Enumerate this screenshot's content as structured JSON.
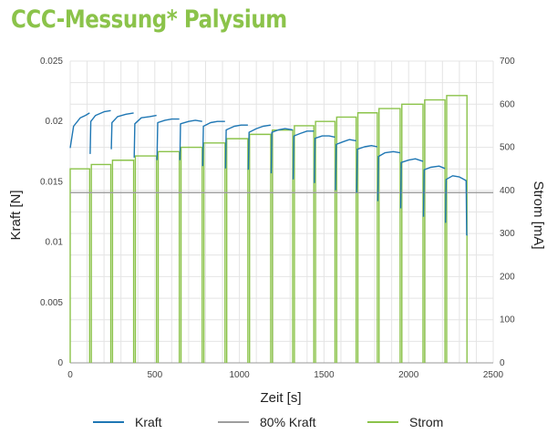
{
  "title": "CCC-Messung* Palysium",
  "colors": {
    "title": "#8bc34a",
    "kraft": "#1f77b4",
    "kraft80": "#9e9e9e",
    "strom": "#8bc34a",
    "grid": "#e4e4e4"
  },
  "chart_data": {
    "type": "line",
    "xlabel": "Zeit [s]",
    "ylabel_left": "Kraft [N]",
    "ylabel_right": "Strom [mA]",
    "xlim": [
      0,
      2500
    ],
    "ylim_left": [
      0,
      0.025
    ],
    "ylim_right": [
      0,
      700
    ],
    "x_ticks": [
      "0",
      "500",
      "1000",
      "1500",
      "2000",
      "2500"
    ],
    "y_left_ticks": [
      "0",
      "0.005",
      "0.01",
      "0.015",
      "0.02",
      "0.025"
    ],
    "y_right_ticks": [
      "0",
      "100",
      "200",
      "300",
      "400",
      "500",
      "600",
      "700"
    ],
    "grid": true,
    "legend_position": "bottom",
    "series": [
      {
        "name": "Kraft",
        "axis": "left",
        "segments": [
          {
            "x": [
              0,
              20,
              60,
              90,
              115
            ],
            "y": [
              0.0178,
              0.0196,
              0.0203,
              0.0205,
              0.0207
            ]
          },
          {
            "x": [
              118,
              122,
              150,
              200,
              240
            ],
            "y": [
              0.0173,
              0.02,
              0.0205,
              0.0208,
              0.0209
            ]
          },
          {
            "x": [
              243,
              247,
              280,
              330,
              375
            ],
            "y": [
              0.0177,
              0.0199,
              0.0204,
              0.0206,
              0.0207
            ]
          },
          {
            "x": [
              378,
              382,
              420,
              470,
              510
            ],
            "y": [
              0.017,
              0.0198,
              0.0203,
              0.0204,
              0.0205
            ]
          },
          {
            "x": [
              513,
              517,
              560,
              600,
              645
            ],
            "y": [
              0.0168,
              0.0199,
              0.0201,
              0.0202,
              0.0202
            ]
          },
          {
            "x": [
              648,
              652,
              700,
              740,
              780
            ],
            "y": [
              0.0168,
              0.0198,
              0.02,
              0.0201,
              0.02
            ]
          },
          {
            "x": [
              783,
              787,
              830,
              870,
              915
            ],
            "y": [
              0.0163,
              0.0196,
              0.0199,
              0.02,
              0.02
            ]
          },
          {
            "x": [
              918,
              922,
              970,
              1010,
              1050
            ],
            "y": [
              0.0161,
              0.0193,
              0.0196,
              0.0197,
              0.0197
            ]
          },
          {
            "x": [
              1053,
              1057,
              1100,
              1140,
              1185
            ],
            "y": [
              0.016,
              0.0191,
              0.0194,
              0.0196,
              0.0197
            ]
          },
          {
            "x": [
              1188,
              1192,
              1230,
              1270,
              1315
            ],
            "y": [
              0.0157,
              0.0191,
              0.0193,
              0.0194,
              0.0193
            ]
          },
          {
            "x": [
              1318,
              1322,
              1360,
              1400,
              1440
            ],
            "y": [
              0.0152,
              0.0188,
              0.019,
              0.0192,
              0.0192
            ]
          },
          {
            "x": [
              1443,
              1447,
              1490,
              1530,
              1565
            ],
            "y": [
              0.0149,
              0.0186,
              0.0188,
              0.0188,
              0.0187
            ]
          },
          {
            "x": [
              1568,
              1572,
              1610,
              1650,
              1690
            ],
            "y": [
              0.0143,
              0.0181,
              0.0183,
              0.0185,
              0.0184
            ]
          },
          {
            "x": [
              1693,
              1697,
              1740,
              1780,
              1815
            ],
            "y": [
              0.0141,
              0.0177,
              0.0179,
              0.018,
              0.0179
            ]
          },
          {
            "x": [
              1818,
              1822,
              1860,
              1910,
              1950
            ],
            "y": [
              0.0134,
              0.0171,
              0.0174,
              0.0175,
              0.0174
            ]
          },
          {
            "x": [
              1953,
              1957,
              2000,
              2040,
              2085
            ],
            "y": [
              0.0128,
              0.0166,
              0.0168,
              0.0169,
              0.0167
            ]
          },
          {
            "x": [
              2088,
              2092,
              2130,
              2180,
              2215
            ],
            "y": [
              0.0121,
              0.016,
              0.0162,
              0.0163,
              0.0161
            ]
          },
          {
            "x": [
              2218,
              2222,
              2260,
              2300,
              2340,
              2343,
              2348
            ],
            "y": [
              0.0116,
              0.0152,
              0.0155,
              0.0154,
              0.0151,
              0.0106,
              0.0106
            ]
          }
        ]
      },
      {
        "name": "80% Kraft",
        "axis": "left",
        "x": [
          0,
          2500
        ],
        "y": [
          0.0141,
          0.0141
        ]
      },
      {
        "name": "Strom",
        "axis": "right",
        "x_start": [
          0,
          125,
          250,
          385,
          520,
          655,
          790,
          925,
          1060,
          1195,
          1325,
          1450,
          1575,
          1700,
          1825,
          1960,
          2095,
          2225
        ],
        "x_end": [
          115,
          240,
          375,
          510,
          645,
          780,
          915,
          1050,
          1185,
          1315,
          1440,
          1565,
          1690,
          1815,
          1950,
          2085,
          2215,
          2345
        ],
        "values": [
          450,
          460,
          470,
          480,
          490,
          500,
          510,
          520,
          530,
          540,
          550,
          560,
          570,
          580,
          590,
          600,
          610,
          620
        ]
      }
    ]
  },
  "legend": [
    {
      "label": "Kraft",
      "color": "#1f77b4"
    },
    {
      "label": "80% Kraft",
      "color": "#9e9e9e"
    },
    {
      "label": "Strom",
      "color": "#8bc34a"
    }
  ]
}
